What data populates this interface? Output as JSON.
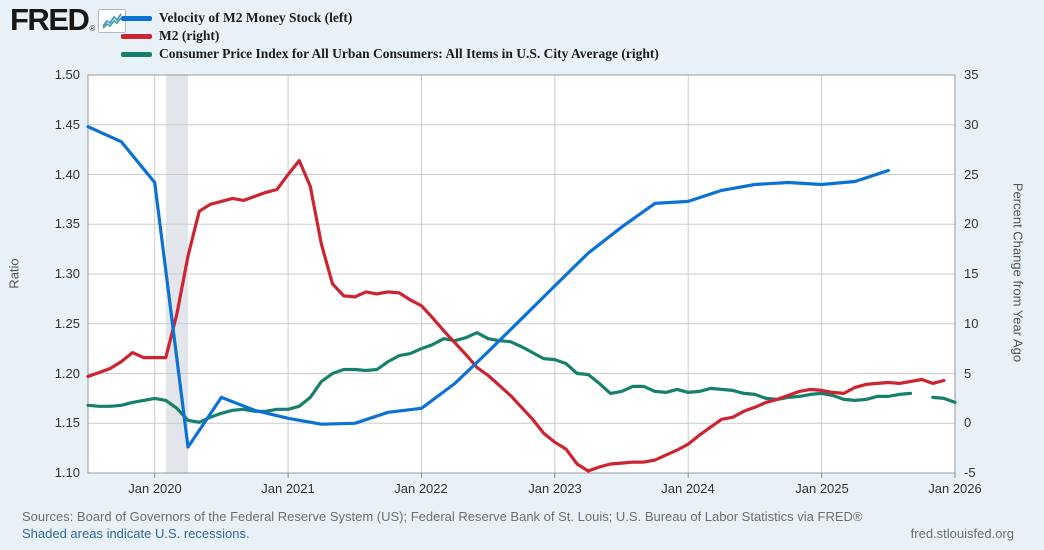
{
  "header": {
    "logo_text": "FRED",
    "logo_registered_mark": "®",
    "logo_icon": "sparkline-chart-icon",
    "legend": [
      {
        "label": "Velocity of M2 Money Stock (left)",
        "color": "#0b72d4"
      },
      {
        "label": "M2 (right)",
        "color": "#cc2431"
      },
      {
        "label": "Consumer Price Index for All Urban Consumers: All Items in U.S. City Average (right)",
        "color": "#16806c"
      }
    ]
  },
  "chart_data": {
    "type": "line",
    "left_axis": {
      "label": "Ratio",
      "min": 1.1,
      "max": 1.5,
      "tick_labels": [
        "1.50",
        "1.45",
        "1.40",
        "1.35",
        "1.30",
        "1.25",
        "1.20",
        "1.15",
        "1.10"
      ]
    },
    "right_axis": {
      "label": "Percent Change from Year Ago",
      "min": -5,
      "max": 35,
      "tick_labels": [
        "35",
        "30",
        "25",
        "20",
        "15",
        "10",
        "5",
        "0",
        "-5"
      ]
    },
    "x_tick_labels": [
      "Jan 2020",
      "Jan 2021",
      "Jan 2022",
      "Jan 2023",
      "Jan 2024",
      "Jan 2025",
      "Jan 2026"
    ],
    "x_range": {
      "start": "2019-07",
      "end": "2026-01"
    },
    "grid": true,
    "legend_position": "top-left",
    "recession_band": {
      "from": "2020-02",
      "to": "2020-04"
    },
    "recession_color": "#e2e6eb",
    "plot_bg": "#ffffff",
    "grid_color": "#cbcbcb",
    "border_color": "#999999",
    "series": [
      {
        "id": "cpi",
        "name": "Consumer Price Index for All Urban Consumers: All Items in U.S. City Average",
        "axis": "right",
        "frequency": "monthly",
        "start": "2019-07",
        "color": "#16806c",
        "values": [
          1.8,
          1.7,
          1.7,
          1.8,
          2.1,
          2.3,
          2.5,
          2.3,
          1.5,
          0.3,
          0.1,
          0.6,
          1.0,
          1.3,
          1.4,
          1.2,
          1.2,
          1.4,
          1.4,
          1.7,
          2.6,
          4.2,
          5.0,
          5.4,
          5.4,
          5.3,
          5.4,
          6.2,
          6.8,
          7.0,
          7.5,
          7.9,
          8.5,
          8.3,
          8.6,
          9.1,
          8.5,
          8.3,
          8.2,
          7.7,
          7.1,
          6.5,
          6.4,
          6.0,
          5.0,
          4.9,
          4.0,
          3.0,
          3.2,
          3.7,
          3.7,
          3.2,
          3.1,
          3.4,
          3.1,
          3.2,
          3.5,
          3.4,
          3.3,
          3.0,
          2.9,
          2.5,
          2.4,
          2.6,
          2.7,
          2.9,
          3.0,
          2.8,
          2.4,
          2.3,
          2.4,
          2.7,
          2.7,
          2.9,
          3.0,
          null,
          2.6,
          2.5,
          2.1
        ]
      },
      {
        "id": "m2",
        "name": "M2",
        "axis": "right",
        "frequency": "monthly",
        "start": "2019-07",
        "color": "#cc2431",
        "values": [
          4.7,
          5.1,
          5.5,
          6.2,
          7.1,
          6.6,
          6.6,
          6.6,
          11.0,
          16.8,
          21.3,
          22.0,
          22.3,
          22.6,
          22.4,
          22.8,
          23.2,
          23.5,
          25.0,
          26.4,
          23.8,
          18.0,
          14.0,
          12.8,
          12.7,
          13.2,
          13.0,
          13.2,
          13.1,
          12.4,
          11.8,
          10.6,
          9.3,
          8.1,
          6.9,
          5.6,
          4.8,
          3.8,
          2.8,
          1.6,
          0.4,
          -1.0,
          -1.9,
          -2.6,
          -4.1,
          -4.8,
          -4.4,
          -4.1,
          -4.0,
          -3.9,
          -3.9,
          -3.7,
          -3.2,
          -2.7,
          -2.1,
          -1.2,
          -0.4,
          0.4,
          0.6,
          1.2,
          1.6,
          2.1,
          2.4,
          2.8,
          3.2,
          3.4,
          3.3,
          3.1,
          3.0,
          3.6,
          3.9,
          4.0,
          4.1,
          4.0,
          4.2,
          4.4,
          4.0,
          4.3
        ]
      },
      {
        "id": "velocity",
        "name": "Velocity of M2 Money Stock",
        "axis": "left",
        "frequency": "quarterly",
        "start": "2019-07",
        "color": "#0b72d4",
        "values": [
          1.448,
          1.433,
          1.392,
          1.126,
          1.176,
          1.163,
          1.155,
          1.149,
          1.15,
          1.161,
          1.165,
          1.19,
          1.222,
          1.255,
          1.288,
          1.321,
          1.347,
          1.371,
          1.373,
          1.384,
          1.39,
          1.392,
          1.39,
          1.393,
          1.404
        ]
      }
    ]
  },
  "footer": {
    "sources": "Sources: Board of Governors of the Federal Reserve System (US); Federal Reserve Bank of St. Louis; U.S. Bureau of Labor Statistics via FRED®",
    "recession_note": "Shaded areas indicate U.S. recessions.",
    "site_link": "fred.stlouisfed.org",
    "note_link_color": "#33689c"
  }
}
